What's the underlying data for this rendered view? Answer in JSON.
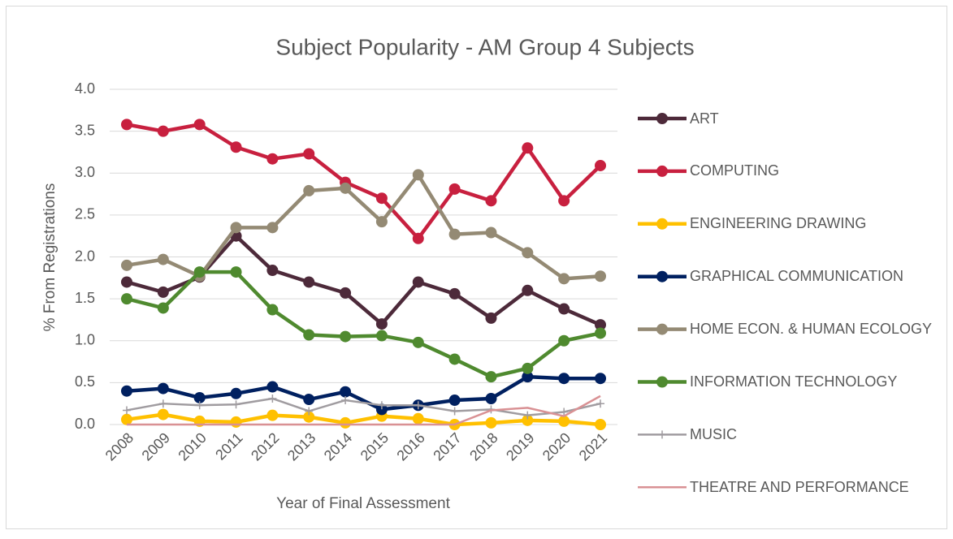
{
  "chart_data": {
    "type": "line",
    "title": "Subject Popularity - AM Group 4 Subjects",
    "x_label": "Year of Final Assessment",
    "y_label": "% From Registrations",
    "categories": [
      "2008",
      "2009",
      "2010",
      "2011",
      "2012",
      "2013",
      "2014",
      "2015",
      "2016",
      "2017",
      "2018",
      "2019",
      "2020",
      "2021"
    ],
    "ylim": [
      0,
      4
    ],
    "yticks": [
      {
        "value": 0,
        "label": "0.0"
      },
      {
        "value": 0.5,
        "label": "0.5"
      },
      {
        "value": 1,
        "label": "1.0"
      },
      {
        "value": 1.5,
        "label": "1.5"
      },
      {
        "value": 2,
        "label": "2.0"
      },
      {
        "value": 2.5,
        "label": "2.5"
      },
      {
        "value": 3,
        "label": "3.0"
      },
      {
        "value": 3.5,
        "label": "3.5"
      },
      {
        "value": 4,
        "label": "4.0"
      }
    ],
    "grid": true,
    "legend": "right",
    "series": [
      {
        "name": "ART",
        "color": "#4d2a3a",
        "marker": "circle",
        "values": [
          1.7,
          1.58,
          1.76,
          2.25,
          1.84,
          1.7,
          1.57,
          1.2,
          1.7,
          1.56,
          1.27,
          1.6,
          1.38,
          1.19
        ]
      },
      {
        "name": "COMPUTING",
        "color": "#c8203f",
        "marker": "circle",
        "values": [
          3.58,
          3.5,
          3.58,
          3.31,
          3.17,
          3.23,
          2.89,
          2.7,
          2.22,
          2.81,
          2.67,
          3.3,
          2.67,
          3.09
        ]
      },
      {
        "name": "ENGINEERING DRAWING",
        "color": "#ffc000",
        "marker": "circle",
        "values": [
          0.06,
          0.12,
          0.04,
          0.03,
          0.11,
          0.09,
          0.02,
          0.1,
          0.07,
          0.0,
          0.02,
          0.05,
          0.04,
          0.0
        ]
      },
      {
        "name": "GRAPHICAL COMMUNICATION",
        "color": "#002060",
        "marker": "circle",
        "values": [
          0.4,
          0.43,
          0.32,
          0.37,
          0.45,
          0.3,
          0.39,
          0.18,
          0.23,
          0.29,
          0.31,
          0.57,
          0.55,
          0.55
        ]
      },
      {
        "name": "HOME ECON. & HUMAN ECOLOGY",
        "color": "#948a74",
        "marker": "circle",
        "values": [
          1.9,
          1.97,
          1.77,
          2.35,
          2.35,
          2.79,
          2.82,
          2.42,
          2.98,
          2.27,
          2.29,
          2.05,
          1.74,
          1.77
        ]
      },
      {
        "name": "INFORMATION TECHNOLOGY",
        "color": "#4f8a2f",
        "marker": "circle",
        "values": [
          1.5,
          1.39,
          1.82,
          1.82,
          1.37,
          1.07,
          1.05,
          1.06,
          0.98,
          0.78,
          0.57,
          0.67,
          1.0,
          1.09
        ]
      },
      {
        "name": "MUSIC",
        "color": "#a09ca0",
        "marker": "plus",
        "values": [
          0.17,
          0.25,
          0.23,
          0.24,
          0.31,
          0.16,
          0.29,
          0.23,
          0.23,
          0.16,
          0.18,
          0.11,
          0.15,
          0.25
        ]
      },
      {
        "name": "THEATRE AND PERFORMANCE",
        "color": "#d99194",
        "marker": "none",
        "values": [
          0,
          0,
          0,
          0,
          0,
          0,
          0,
          0,
          0,
          0,
          0.17,
          0.2,
          0.1,
          0.34
        ]
      }
    ]
  }
}
